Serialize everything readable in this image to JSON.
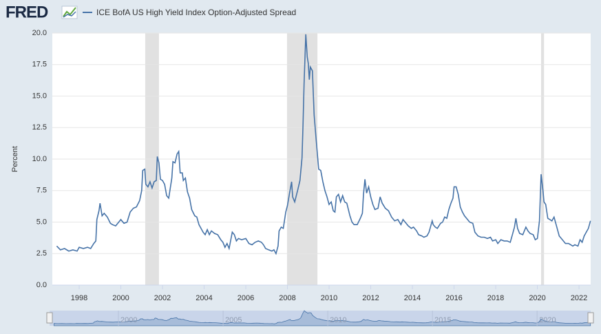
{
  "brand": "FRED",
  "chart_data": {
    "type": "line",
    "ylabel": "Percent",
    "x": [
      1996.92,
      1997.1,
      1997.3,
      1997.5,
      1997.7,
      1997.9,
      1998.0,
      1998.2,
      1998.4,
      1998.55,
      1998.7,
      1998.8,
      1998.85,
      1998.95,
      1999.0,
      1999.1,
      1999.2,
      1999.35,
      1999.5,
      1999.6,
      1999.75,
      1999.9,
      2000.0,
      2000.15,
      2000.3,
      2000.45,
      2000.6,
      2000.75,
      2000.9,
      2001.0,
      2001.05,
      2001.15,
      2001.2,
      2001.3,
      2001.4,
      2001.5,
      2001.6,
      2001.7,
      2001.75,
      2001.83,
      2001.9,
      2002.0,
      2002.1,
      2002.2,
      2002.3,
      2002.45,
      2002.5,
      2002.6,
      2002.7,
      2002.78,
      2002.85,
      2002.95,
      2003.0,
      2003.1,
      2003.2,
      2003.3,
      2003.4,
      2003.55,
      2003.65,
      2003.75,
      2003.85,
      2003.95,
      2004.05,
      2004.15,
      2004.25,
      2004.35,
      2004.5,
      2004.65,
      2004.8,
      2004.9,
      2005.0,
      2005.1,
      2005.2,
      2005.35,
      2005.45,
      2005.55,
      2005.65,
      2005.8,
      2006.0,
      2006.15,
      2006.3,
      2006.45,
      2006.6,
      2006.75,
      2006.85,
      2006.95,
      2007.1,
      2007.25,
      2007.35,
      2007.45,
      2007.55,
      2007.6,
      2007.7,
      2007.8,
      2007.92,
      2008.0,
      2008.1,
      2008.2,
      2008.25,
      2008.35,
      2008.5,
      2008.6,
      2008.7,
      2008.75,
      2008.8,
      2008.88,
      2008.95,
      2009.0,
      2009.05,
      2009.1,
      2009.2,
      2009.28,
      2009.38,
      2009.5,
      2009.6,
      2009.7,
      2009.8,
      2009.9,
      2010.0,
      2010.1,
      2010.2,
      2010.28,
      2010.35,
      2010.45,
      2010.55,
      2010.65,
      2010.75,
      2010.85,
      2011.0,
      2011.1,
      2011.2,
      2011.35,
      2011.5,
      2011.6,
      2011.65,
      2011.72,
      2011.8,
      2011.9,
      2012.0,
      2012.1,
      2012.2,
      2012.35,
      2012.45,
      2012.55,
      2012.7,
      2012.85,
      2013.0,
      2013.15,
      2013.3,
      2013.45,
      2013.55,
      2013.65,
      2013.8,
      2013.95,
      2014.05,
      2014.2,
      2014.3,
      2014.45,
      2014.55,
      2014.7,
      2014.8,
      2014.95,
      2015.0,
      2015.1,
      2015.2,
      2015.35,
      2015.45,
      2015.55,
      2015.65,
      2015.75,
      2015.85,
      2015.95,
      2016.0,
      2016.1,
      2016.2,
      2016.3,
      2016.4,
      2016.5,
      2016.6,
      2016.75,
      2016.9,
      2017.0,
      2017.15,
      2017.3,
      2017.45,
      2017.6,
      2017.75,
      2017.85,
      2018.0,
      2018.1,
      2018.25,
      2018.4,
      2018.55,
      2018.7,
      2018.8,
      2018.9,
      2018.97,
      2019.05,
      2019.15,
      2019.3,
      2019.45,
      2019.55,
      2019.65,
      2019.8,
      2019.9,
      2020.0,
      2020.1,
      2020.18,
      2020.27,
      2020.32,
      2020.4,
      2020.5,
      2020.6,
      2020.7,
      2020.8,
      2020.95,
      2021.05,
      2021.2,
      2021.35,
      2021.5,
      2021.6,
      2021.7,
      2021.8,
      2021.95,
      2022.05,
      2022.15,
      2022.25,
      2022.35,
      2022.45,
      2022.55
    ],
    "series": [
      {
        "name": "ICE BofA US High Yield Index Option-Adjusted Spread",
        "color": "#4572a7",
        "values": [
          3.1,
          2.8,
          2.9,
          2.7,
          2.8,
          2.7,
          3.0,
          2.9,
          3.0,
          2.9,
          3.3,
          3.5,
          5.2,
          5.9,
          6.5,
          5.5,
          5.7,
          5.4,
          4.9,
          4.8,
          4.7,
          5.0,
          5.2,
          4.9,
          5.0,
          5.8,
          6.1,
          6.2,
          6.7,
          7.5,
          9.1,
          9.2,
          8.0,
          7.8,
          8.2,
          7.7,
          8.2,
          8.3,
          10.2,
          9.7,
          8.4,
          8.3,
          8.0,
          7.1,
          6.9,
          8.5,
          9.8,
          9.7,
          10.4,
          10.6,
          8.9,
          8.9,
          8.3,
          8.5,
          7.4,
          6.9,
          6.0,
          5.5,
          5.4,
          4.8,
          4.5,
          4.2,
          4.0,
          4.4,
          4.0,
          4.3,
          4.1,
          4.0,
          3.6,
          3.4,
          3.0,
          3.3,
          2.9,
          4.2,
          4.0,
          3.5,
          3.7,
          3.6,
          3.7,
          3.3,
          3.2,
          3.4,
          3.5,
          3.4,
          3.2,
          2.9,
          2.8,
          2.7,
          2.8,
          2.5,
          3.1,
          4.3,
          4.6,
          4.5,
          5.8,
          6.3,
          7.3,
          8.2,
          7.0,
          6.6,
          7.6,
          8.3,
          10.1,
          12.8,
          16.0,
          19.9,
          18.1,
          17.6,
          16.3,
          17.3,
          17.0,
          13.5,
          11.5,
          9.2,
          9.1,
          8.2,
          7.5,
          7.0,
          6.4,
          6.6,
          5.9,
          5.8,
          7.0,
          7.2,
          6.6,
          7.1,
          6.6,
          6.5,
          5.5,
          5.0,
          4.8,
          4.8,
          5.3,
          5.7,
          7.2,
          8.4,
          7.3,
          7.8,
          7.0,
          6.4,
          6.0,
          6.1,
          7.0,
          6.5,
          6.1,
          5.9,
          5.4,
          5.1,
          5.2,
          4.8,
          5.2,
          5.0,
          4.7,
          4.5,
          4.6,
          4.3,
          4.0,
          3.9,
          3.8,
          3.9,
          4.2,
          5.1,
          4.8,
          4.6,
          4.5,
          4.9,
          5.0,
          5.4,
          5.3,
          6.0,
          6.5,
          6.9,
          7.8,
          7.8,
          7.2,
          6.2,
          5.8,
          5.5,
          5.3,
          5.0,
          4.9,
          4.2,
          3.9,
          3.8,
          3.8,
          3.7,
          3.8,
          3.5,
          3.6,
          3.3,
          3.6,
          3.5,
          3.5,
          3.4,
          4.0,
          4.6,
          5.3,
          4.5,
          4.1,
          4.0,
          4.6,
          4.3,
          4.1,
          4.0,
          3.6,
          3.7,
          5.1,
          8.8,
          7.5,
          6.6,
          6.4,
          5.3,
          5.2,
          5.1,
          5.4,
          4.5,
          3.9,
          3.6,
          3.3,
          3.3,
          3.2,
          3.1,
          3.2,
          3.1,
          3.6,
          3.4,
          3.9,
          4.2,
          4.5,
          5.1
        ]
      }
    ],
    "recessions": [
      [
        2001.17,
        2001.83
      ],
      [
        2007.98,
        2009.44
      ],
      [
        2020.18,
        2020.32
      ]
    ],
    "xlim": [
      1996.71,
      2022.56
    ],
    "xticks": [
      1998,
      2000,
      2002,
      2004,
      2006,
      2008,
      2010,
      2012,
      2014,
      2016,
      2018,
      2020,
      2022
    ],
    "ylim": [
      0,
      20
    ],
    "yticks": [
      {
        "value": 0,
        "label": "0.0"
      },
      2.5,
      {
        "value": 5,
        "label": "5.0"
      },
      7.5,
      {
        "value": 10,
        "label": "10.0"
      },
      12.5,
      {
        "value": 15,
        "label": "15.0"
      },
      17.5,
      {
        "value": 20,
        "label": "20.0"
      }
    ],
    "grid": true,
    "navigator_xticks": [
      2000,
      2005,
      2010,
      2015,
      2020
    ]
  }
}
